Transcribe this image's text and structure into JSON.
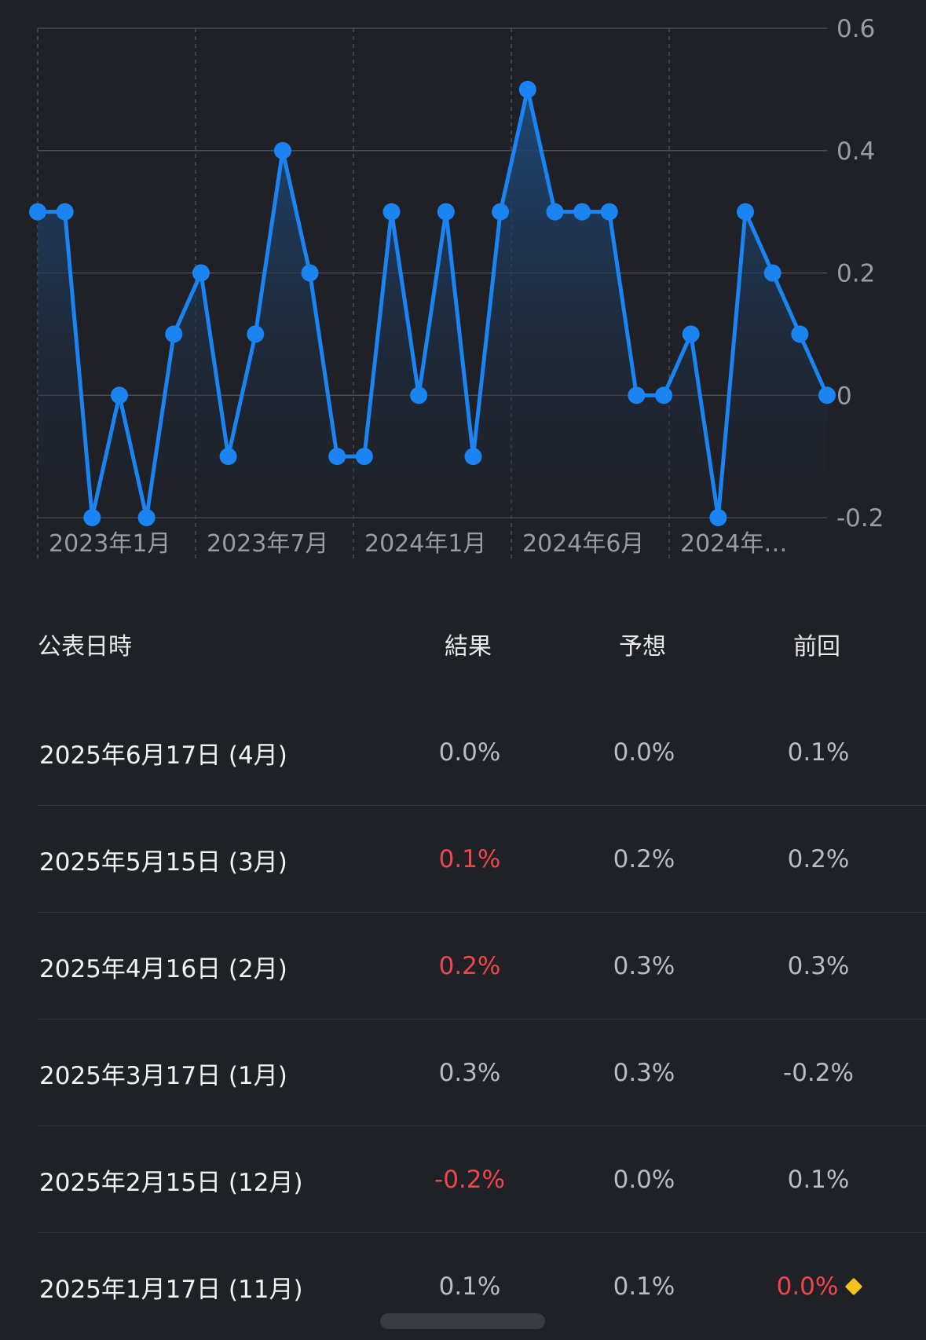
{
  "chart_data": {
    "type": "area",
    "y_ticks": [
      "0.6",
      "0.4",
      "0.2",
      "0",
      "-0.2"
    ],
    "x_tick_labels": [
      "2023年1月",
      "2023年7月",
      "2024年1月",
      "2024年6月",
      "2024年…"
    ],
    "ylim": [
      -0.2,
      0.6
    ],
    "values": [
      0.3,
      0.3,
      -0.2,
      0,
      -0.2,
      0.1,
      0.2,
      -0.1,
      0.1,
      0.4,
      0.2,
      -0.1,
      -0.1,
      0.3,
      0,
      0.3,
      -0.1,
      0.3,
      0.5,
      0.3,
      0.3,
      0.3,
      0,
      0,
      0.1,
      -0.2,
      0.3,
      0.2,
      0.1,
      0
    ],
    "colors": {
      "line": "#1a84f2",
      "fill_top": "#1d4a7c",
      "fill_bottom": "#1f2127",
      "grid": "#4a4d55"
    }
  },
  "table": {
    "headers": {
      "date": "公表日時",
      "result": "結果",
      "forecast": "予想",
      "previous": "前回"
    },
    "rows": [
      {
        "date": "2025年6月17日 (4月)",
        "result": "0.0%",
        "forecast": "0.0%",
        "previous": "0.1%",
        "result_neg": false,
        "prev_neg": false
      },
      {
        "date": "2025年5月15日 (3月)",
        "result": "0.1%",
        "forecast": "0.2%",
        "previous": "0.2%",
        "result_neg": true,
        "prev_neg": false
      },
      {
        "date": "2025年4月16日 (2月)",
        "result": "0.2%",
        "forecast": "0.3%",
        "previous": "0.3%",
        "result_neg": true,
        "prev_neg": false
      },
      {
        "date": "2025年3月17日 (1月)",
        "result": "0.3%",
        "forecast": "0.3%",
        "previous": "-0.2%",
        "result_neg": false,
        "prev_neg": false
      },
      {
        "date": "2025年2月15日 (12月)",
        "result": "-0.2%",
        "forecast": "0.0%",
        "previous": "0.1%",
        "result_neg": true,
        "prev_neg": false
      },
      {
        "date": "2025年1月17日 (11月)",
        "result": "0.1%",
        "forecast": "0.1%",
        "previous": "0.0%",
        "result_neg": false,
        "prev_neg": true,
        "prev_revised_icon": "diamond-icon"
      }
    ]
  }
}
